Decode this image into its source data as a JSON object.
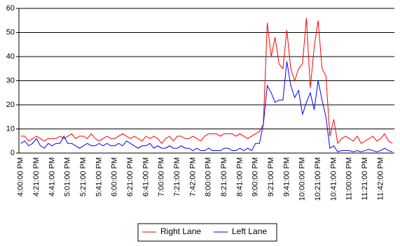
{
  "chart_data": {
    "type": "line",
    "categories": [
      "4:00:00 PM",
      null,
      null,
      null,
      "4:21:00 PM",
      null,
      null,
      null,
      "4:41:00 PM",
      null,
      null,
      null,
      "5:01:00 PM",
      null,
      null,
      null,
      "5:21:00 PM",
      null,
      null,
      null,
      "5:41:00 PM",
      null,
      null,
      null,
      "6:00:00 PM",
      null,
      null,
      null,
      "6:21:00 PM",
      null,
      null,
      null,
      "6:41:00 PM",
      null,
      null,
      null,
      "7:00:00 PM",
      null,
      null,
      null,
      "7:21:00 PM",
      null,
      null,
      null,
      "7:42:00 PM",
      null,
      null,
      null,
      "8:00:00 PM",
      null,
      null,
      null,
      "8:21:00 PM",
      null,
      null,
      null,
      "8:41:00 PM",
      null,
      null,
      null,
      "9:00:00 PM",
      null,
      null,
      null,
      "9:21:00 PM",
      null,
      null,
      null,
      "9:41:00 PM",
      null,
      null,
      null,
      "10:00:00 PM",
      null,
      null,
      null,
      "10:21:00 PM",
      null,
      null,
      null,
      "10:41:00 PM",
      null,
      null,
      null,
      "11:00:00 PM",
      null,
      null,
      null,
      "11:21:00 PM",
      null,
      null,
      null,
      "11:42:00 PM",
      null,
      null,
      null
    ],
    "series": [
      {
        "name": "Right Lane",
        "color": "#ff0000",
        "values": [
          7,
          7,
          5,
          6,
          7,
          6,
          5,
          6,
          6,
          6,
          7,
          6,
          7,
          8,
          6,
          7,
          7,
          6,
          8,
          6,
          5,
          6,
          7,
          6,
          6,
          7,
          8,
          7,
          6,
          7,
          6,
          5,
          7,
          6,
          7,
          6,
          4,
          6,
          7,
          5,
          7,
          7,
          6,
          6,
          7,
          6,
          5,
          7,
          8,
          8,
          8,
          7,
          8,
          8,
          8,
          7,
          8,
          7,
          6,
          7,
          8,
          9,
          12,
          54,
          40,
          48,
          37,
          35,
          51,
          35,
          30,
          35,
          37,
          56,
          27,
          44,
          55,
          35,
          32,
          7,
          14,
          4,
          6,
          7,
          6,
          5,
          7,
          4,
          5,
          6,
          7,
          5,
          6,
          8,
          5,
          4
        ]
      },
      {
        "name": "Left Lane",
        "color": "#0000ff",
        "values": [
          4,
          5,
          3,
          4,
          6,
          3,
          2,
          4,
          3,
          4,
          4,
          7,
          4,
          4,
          3,
          2,
          3,
          4,
          3,
          3,
          4,
          3,
          4,
          3,
          3,
          4,
          3,
          5,
          4,
          3,
          2,
          3,
          3,
          4,
          2,
          3,
          2,
          2,
          3,
          2,
          2,
          3,
          2,
          2,
          1,
          2,
          1,
          1,
          2,
          1,
          1,
          1,
          2,
          2,
          1,
          1,
          2,
          1,
          2,
          1,
          4,
          4,
          12,
          28,
          25,
          21,
          22,
          22,
          38,
          28,
          23,
          26,
          16,
          21,
          25,
          18,
          30,
          22,
          15,
          2,
          3,
          0.5,
          1,
          1,
          1,
          0.5,
          1,
          0.5,
          1,
          1.5,
          1,
          0.5,
          1,
          2,
          1,
          0.5
        ]
      }
    ],
    "ylim": [
      0,
      60
    ],
    "yticks": [
      0,
      10,
      20,
      30,
      40,
      50,
      60
    ],
    "grid": true,
    "legend": "bottom"
  }
}
